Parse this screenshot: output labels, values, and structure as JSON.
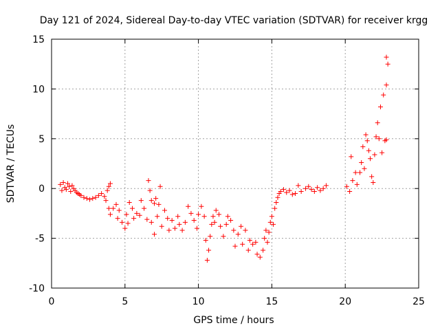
{
  "chart_data": {
    "type": "scatter",
    "title": "Day 121 of 2024, Sidereal Day-to-day VTEC variation (SDTVAR) for receiver krgg",
    "xlabel": "GPS time / hours",
    "ylabel": "SDTVAR / TECUs",
    "xlim": [
      0,
      25
    ],
    "ylim": [
      -10,
      15
    ],
    "x_ticks": [
      "0",
      "5",
      "10",
      "15",
      "20",
      "25"
    ],
    "y_ticks": [
      "15",
      "10",
      "5",
      "0",
      "-5",
      "-10"
    ],
    "grid": true,
    "marker": "plus",
    "colors": {
      "series": "#ff0000",
      "grid": "#a0a0a0",
      "axes": "#000000"
    },
    "series": [
      {
        "name": "SDTVAR",
        "points": [
          [
            0.6,
            0.4
          ],
          [
            0.7,
            -0.2
          ],
          [
            0.8,
            0.6
          ],
          [
            0.9,
            0.1
          ],
          [
            1.0,
            -0.1
          ],
          [
            1.1,
            0.5
          ],
          [
            1.2,
            0.2
          ],
          [
            1.3,
            -0.3
          ],
          [
            1.4,
            0.3
          ],
          [
            1.5,
            0.0
          ],
          [
            1.6,
            -0.2
          ],
          [
            1.7,
            -0.4
          ],
          [
            1.8,
            -0.5
          ],
          [
            1.9,
            -0.6
          ],
          [
            2.0,
            -0.7
          ],
          [
            2.2,
            -0.9
          ],
          [
            2.4,
            -1.0
          ],
          [
            2.6,
            -1.1
          ],
          [
            2.8,
            -1.0
          ],
          [
            3.0,
            -0.9
          ],
          [
            3.2,
            -0.7
          ],
          [
            3.4,
            -0.5
          ],
          [
            3.6,
            -0.8
          ],
          [
            3.8,
            -0.2
          ],
          [
            4.0,
            0.5
          ],
          [
            3.9,
            0.2
          ],
          [
            3.7,
            -1.2
          ],
          [
            3.9,
            -2.0
          ],
          [
            4.0,
            -2.6
          ],
          [
            4.2,
            -2.0
          ],
          [
            4.4,
            -1.6
          ],
          [
            4.5,
            -3.0
          ],
          [
            4.6,
            -2.2
          ],
          [
            4.8,
            -3.4
          ],
          [
            5.0,
            -4.0
          ],
          [
            5.1,
            -2.6
          ],
          [
            5.2,
            -3.5
          ],
          [
            5.3,
            -1.4
          ],
          [
            5.5,
            -2.0
          ],
          [
            5.6,
            -3.0
          ],
          [
            5.8,
            -2.5
          ],
          [
            6.0,
            -2.7
          ],
          [
            6.1,
            -1.2
          ],
          [
            6.3,
            -2.0
          ],
          [
            6.5,
            -3.1
          ],
          [
            6.6,
            0.8
          ],
          [
            6.7,
            -0.2
          ],
          [
            6.8,
            -1.2
          ],
          [
            7.0,
            -1.5
          ],
          [
            7.1,
            -1.0
          ],
          [
            7.3,
            -1.6
          ],
          [
            7.4,
            0.2
          ],
          [
            7.2,
            -2.8
          ],
          [
            7.0,
            -4.6
          ],
          [
            6.8,
            -3.4
          ],
          [
            7.5,
            -3.8
          ],
          [
            7.7,
            -2.2
          ],
          [
            7.9,
            -3.0
          ],
          [
            8.0,
            -4.2
          ],
          [
            8.2,
            -3.2
          ],
          [
            8.4,
            -4.0
          ],
          [
            8.6,
            -2.8
          ],
          [
            8.7,
            -3.6
          ],
          [
            8.9,
            -4.2
          ],
          [
            9.1,
            -3.4
          ],
          [
            9.3,
            -1.8
          ],
          [
            9.5,
            -2.5
          ],
          [
            9.7,
            -3.2
          ],
          [
            9.9,
            -4.0
          ],
          [
            10.0,
            -2.6
          ],
          [
            10.2,
            -1.8
          ],
          [
            10.4,
            -2.8
          ],
          [
            10.5,
            -5.2
          ],
          [
            10.6,
            -7.2
          ],
          [
            10.7,
            -6.2
          ],
          [
            10.8,
            -4.8
          ],
          [
            10.9,
            -3.6
          ],
          [
            11.0,
            -2.8
          ],
          [
            11.1,
            -3.4
          ],
          [
            11.2,
            -2.2
          ],
          [
            11.4,
            -2.6
          ],
          [
            11.5,
            -3.8
          ],
          [
            11.7,
            -4.8
          ],
          [
            11.9,
            -3.6
          ],
          [
            12.0,
            -2.8
          ],
          [
            12.2,
            -3.2
          ],
          [
            12.4,
            -4.2
          ],
          [
            12.5,
            -5.8
          ],
          [
            12.7,
            -4.6
          ],
          [
            12.9,
            -3.8
          ],
          [
            13.0,
            -5.6
          ],
          [
            13.2,
            -4.2
          ],
          [
            13.4,
            -6.2
          ],
          [
            13.5,
            -5.2
          ],
          [
            13.7,
            -5.6
          ],
          [
            13.9,
            -5.4
          ],
          [
            14.0,
            -6.6
          ],
          [
            14.2,
            -6.9
          ],
          [
            14.4,
            -6.2
          ],
          [
            14.5,
            -5.0
          ],
          [
            14.6,
            -4.2
          ],
          [
            14.7,
            -5.4
          ],
          [
            14.8,
            -4.4
          ],
          [
            14.9,
            -3.4
          ],
          [
            15.0,
            -2.8
          ],
          [
            15.1,
            -3.6
          ],
          [
            15.2,
            -2.0
          ],
          [
            15.3,
            -1.4
          ],
          [
            15.4,
            -0.9
          ],
          [
            15.5,
            -0.5
          ],
          [
            15.6,
            -0.3
          ],
          [
            15.8,
            -0.1
          ],
          [
            16.0,
            -0.4
          ],
          [
            16.2,
            -0.2
          ],
          [
            16.4,
            -0.6
          ],
          [
            16.6,
            -0.5
          ],
          [
            16.8,
            0.3
          ],
          [
            17.0,
            -0.3
          ],
          [
            17.3,
            0.0
          ],
          [
            17.5,
            0.2
          ],
          [
            17.7,
            -0.1
          ],
          [
            17.9,
            -0.3
          ],
          [
            18.1,
            0.1
          ],
          [
            18.3,
            -0.2
          ],
          [
            18.5,
            0.0
          ],
          [
            18.7,
            0.3
          ],
          [
            20.1,
            0.2
          ],
          [
            20.3,
            -0.3
          ],
          [
            20.4,
            3.2
          ],
          [
            20.5,
            0.8
          ],
          [
            20.7,
            1.6
          ],
          [
            20.8,
            0.4
          ],
          [
            21.0,
            1.6
          ],
          [
            21.1,
            2.6
          ],
          [
            21.2,
            4.2
          ],
          [
            21.3,
            2.0
          ],
          [
            21.4,
            5.4
          ],
          [
            21.5,
            4.8
          ],
          [
            21.6,
            3.8
          ],
          [
            21.7,
            3.0
          ],
          [
            21.8,
            1.2
          ],
          [
            21.9,
            0.6
          ],
          [
            22.0,
            3.4
          ],
          [
            22.1,
            5.2
          ],
          [
            22.2,
            6.6
          ],
          [
            22.3,
            5.0
          ],
          [
            22.4,
            8.2
          ],
          [
            22.5,
            3.6
          ],
          [
            22.6,
            9.4
          ],
          [
            22.7,
            4.8
          ],
          [
            22.8,
            13.2
          ],
          [
            22.8,
            10.4
          ],
          [
            22.9,
            12.5
          ],
          [
            22.8,
            4.9
          ]
        ]
      }
    ]
  }
}
